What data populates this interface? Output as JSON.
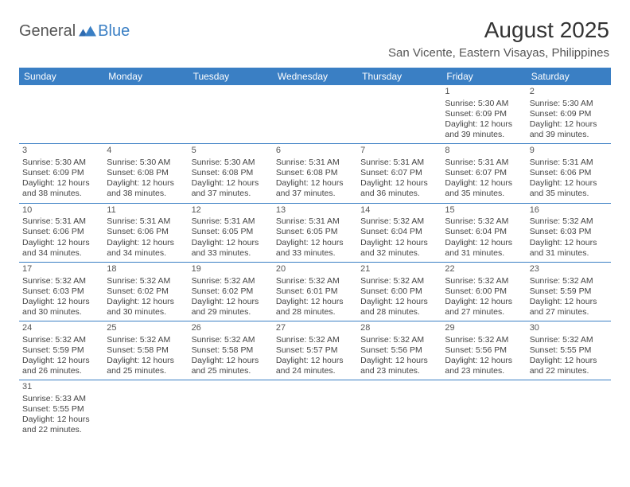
{
  "brand": {
    "general": "General",
    "blue": "Blue"
  },
  "title": "August 2025",
  "location": "San Vicente, Eastern Visayas, Philippines",
  "colors": {
    "header_bg": "#3a7fc4",
    "header_text": "#ffffff",
    "border": "#3a7fc4",
    "text": "#444444",
    "title_text": "#333333",
    "logo_gray": "#555555",
    "logo_blue": "#3a7fc4",
    "background": "#ffffff"
  },
  "weekdays": [
    "Sunday",
    "Monday",
    "Tuesday",
    "Wednesday",
    "Thursday",
    "Friday",
    "Saturday"
  ],
  "layout": {
    "first_weekday_index": 5,
    "rows": 6,
    "cols": 7
  },
  "days": [
    {
      "n": "1",
      "sr": "5:30 AM",
      "ss": "6:09 PM",
      "dl1": "12 hours",
      "dl2": "and 39 minutes."
    },
    {
      "n": "2",
      "sr": "5:30 AM",
      "ss": "6:09 PM",
      "dl1": "12 hours",
      "dl2": "and 39 minutes."
    },
    {
      "n": "3",
      "sr": "5:30 AM",
      "ss": "6:09 PM",
      "dl1": "12 hours",
      "dl2": "and 38 minutes."
    },
    {
      "n": "4",
      "sr": "5:30 AM",
      "ss": "6:08 PM",
      "dl1": "12 hours",
      "dl2": "and 38 minutes."
    },
    {
      "n": "5",
      "sr": "5:30 AM",
      "ss": "6:08 PM",
      "dl1": "12 hours",
      "dl2": "and 37 minutes."
    },
    {
      "n": "6",
      "sr": "5:31 AM",
      "ss": "6:08 PM",
      "dl1": "12 hours",
      "dl2": "and 37 minutes."
    },
    {
      "n": "7",
      "sr": "5:31 AM",
      "ss": "6:07 PM",
      "dl1": "12 hours",
      "dl2": "and 36 minutes."
    },
    {
      "n": "8",
      "sr": "5:31 AM",
      "ss": "6:07 PM",
      "dl1": "12 hours",
      "dl2": "and 35 minutes."
    },
    {
      "n": "9",
      "sr": "5:31 AM",
      "ss": "6:06 PM",
      "dl1": "12 hours",
      "dl2": "and 35 minutes."
    },
    {
      "n": "10",
      "sr": "5:31 AM",
      "ss": "6:06 PM",
      "dl1": "12 hours",
      "dl2": "and 34 minutes."
    },
    {
      "n": "11",
      "sr": "5:31 AM",
      "ss": "6:06 PM",
      "dl1": "12 hours",
      "dl2": "and 34 minutes."
    },
    {
      "n": "12",
      "sr": "5:31 AM",
      "ss": "6:05 PM",
      "dl1": "12 hours",
      "dl2": "and 33 minutes."
    },
    {
      "n": "13",
      "sr": "5:31 AM",
      "ss": "6:05 PM",
      "dl1": "12 hours",
      "dl2": "and 33 minutes."
    },
    {
      "n": "14",
      "sr": "5:32 AM",
      "ss": "6:04 PM",
      "dl1": "12 hours",
      "dl2": "and 32 minutes."
    },
    {
      "n": "15",
      "sr": "5:32 AM",
      "ss": "6:04 PM",
      "dl1": "12 hours",
      "dl2": "and 31 minutes."
    },
    {
      "n": "16",
      "sr": "5:32 AM",
      "ss": "6:03 PM",
      "dl1": "12 hours",
      "dl2": "and 31 minutes."
    },
    {
      "n": "17",
      "sr": "5:32 AM",
      "ss": "6:03 PM",
      "dl1": "12 hours",
      "dl2": "and 30 minutes."
    },
    {
      "n": "18",
      "sr": "5:32 AM",
      "ss": "6:02 PM",
      "dl1": "12 hours",
      "dl2": "and 30 minutes."
    },
    {
      "n": "19",
      "sr": "5:32 AM",
      "ss": "6:02 PM",
      "dl1": "12 hours",
      "dl2": "and 29 minutes."
    },
    {
      "n": "20",
      "sr": "5:32 AM",
      "ss": "6:01 PM",
      "dl1": "12 hours",
      "dl2": "and 28 minutes."
    },
    {
      "n": "21",
      "sr": "5:32 AM",
      "ss": "6:00 PM",
      "dl1": "12 hours",
      "dl2": "and 28 minutes."
    },
    {
      "n": "22",
      "sr": "5:32 AM",
      "ss": "6:00 PM",
      "dl1": "12 hours",
      "dl2": "and 27 minutes."
    },
    {
      "n": "23",
      "sr": "5:32 AM",
      "ss": "5:59 PM",
      "dl1": "12 hours",
      "dl2": "and 27 minutes."
    },
    {
      "n": "24",
      "sr": "5:32 AM",
      "ss": "5:59 PM",
      "dl1": "12 hours",
      "dl2": "and 26 minutes."
    },
    {
      "n": "25",
      "sr": "5:32 AM",
      "ss": "5:58 PM",
      "dl1": "12 hours",
      "dl2": "and 25 minutes."
    },
    {
      "n": "26",
      "sr": "5:32 AM",
      "ss": "5:58 PM",
      "dl1": "12 hours",
      "dl2": "and 25 minutes."
    },
    {
      "n": "27",
      "sr": "5:32 AM",
      "ss": "5:57 PM",
      "dl1": "12 hours",
      "dl2": "and 24 minutes."
    },
    {
      "n": "28",
      "sr": "5:32 AM",
      "ss": "5:56 PM",
      "dl1": "12 hours",
      "dl2": "and 23 minutes."
    },
    {
      "n": "29",
      "sr": "5:32 AM",
      "ss": "5:56 PM",
      "dl1": "12 hours",
      "dl2": "and 23 minutes."
    },
    {
      "n": "30",
      "sr": "5:32 AM",
      "ss": "5:55 PM",
      "dl1": "12 hours",
      "dl2": "and 22 minutes."
    },
    {
      "n": "31",
      "sr": "5:33 AM",
      "ss": "5:55 PM",
      "dl1": "12 hours",
      "dl2": "and 22 minutes."
    }
  ],
  "labels": {
    "sunrise": "Sunrise:",
    "sunset": "Sunset:",
    "daylight": "Daylight:"
  }
}
